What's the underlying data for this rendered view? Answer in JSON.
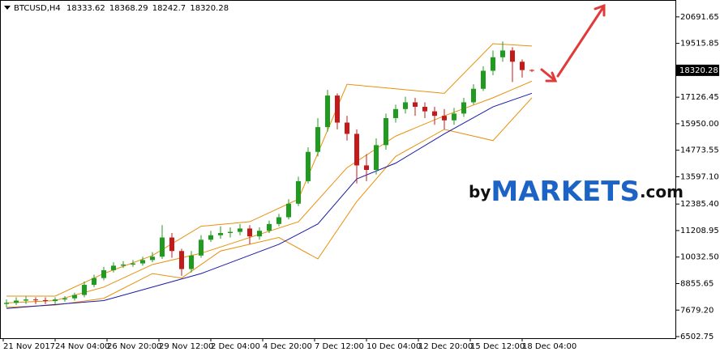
{
  "chart_data": {
    "type": "candlestick",
    "symbol": "BTCUSD,H4",
    "bull_color": "#1f9c1f",
    "bear_color": "#c41a1a",
    "open": [
      7950,
      8000,
      8100,
      8150,
      8120,
      8080,
      8150,
      8200,
      8350,
      8800,
      9100,
      9450,
      9650,
      9700,
      9750,
      9900,
      10050,
      10900,
      10300,
      9500,
      10100,
      10800,
      11000,
      11100,
      11150,
      11300,
      10950,
      11200,
      11500,
      11800,
      12400,
      13400,
      14700,
      15800,
      17200,
      16000,
      15500,
      14100,
      13900,
      15000,
      16200,
      16600,
      16900,
      16700,
      16500,
      16300,
      16100,
      16400,
      16900,
      17500,
      18300,
      18900,
      19200,
      18700,
      18333.62
    ],
    "high": [
      8150,
      8250,
      8300,
      8250,
      8250,
      8250,
      8300,
      8450,
      8950,
      9250,
      9600,
      9800,
      9850,
      9900,
      10050,
      10250,
      11450,
      11100,
      10400,
      10300,
      11000,
      11200,
      11400,
      11350,
      11500,
      11450,
      11350,
      11650,
      11950,
      12600,
      13600,
      14900,
      16200,
      17450,
      17300,
      16300,
      15700,
      14600,
      15300,
      16400,
      16800,
      17150,
      17100,
      16900,
      16700,
      16600,
      16650,
      17100,
      17700,
      18500,
      19200,
      19600,
      19350,
      18800,
      18368.29
    ],
    "low": [
      7800,
      7900,
      7950,
      7950,
      7950,
      7950,
      8050,
      8100,
      8250,
      8700,
      9000,
      9350,
      9550,
      9600,
      9650,
      9800,
      9950,
      10000,
      9200,
      9350,
      10000,
      10700,
      10850,
      10900,
      11000,
      10600,
      10800,
      11100,
      11400,
      11700,
      12300,
      13300,
      14500,
      15600,
      15700,
      15200,
      13300,
      13400,
      13700,
      14800,
      16000,
      16400,
      16300,
      16200,
      15900,
      15700,
      15900,
      16250,
      16800,
      17400,
      18100,
      18700,
      17800,
      18000,
      18242.7
    ],
    "close": [
      8000,
      8100,
      8150,
      8120,
      8080,
      8150,
      8200,
      8350,
      8800,
      9100,
      9450,
      9650,
      9700,
      9750,
      9900,
      10050,
      10900,
      10300,
      9500,
      10100,
      10800,
      11000,
      11100,
      11150,
      11300,
      10950,
      11200,
      11500,
      11800,
      12400,
      13400,
      14700,
      15800,
      17200,
      16000,
      15500,
      14100,
      13900,
      15000,
      16200,
      16600,
      16900,
      16700,
      16500,
      16300,
      16100,
      16400,
      16900,
      17500,
      18300,
      18900,
      19200,
      18700,
      18330,
      18320.28
    ],
    "lines": [
      {
        "color": "#e8900a",
        "x": [
          0,
          5,
          10,
          15,
          20,
          25,
          30,
          35,
          40,
          45,
          50,
          54
        ],
        "values": [
          8300,
          8300,
          9300,
          10100,
          11400,
          11600,
          12600,
          17700,
          17500,
          17300,
          19500,
          19400
        ]
      },
      {
        "color": "#e8900a",
        "x": [
          0,
          5,
          10,
          15,
          20,
          25,
          30,
          35,
          40,
          45,
          50,
          54
        ],
        "values": [
          8000,
          8100,
          8700,
          9700,
          10200,
          10900,
          11600,
          14000,
          15400,
          16300,
          17100,
          17840
        ]
      },
      {
        "color": "#e8900a",
        "x": [
          0,
          5,
          10,
          15,
          18,
          22,
          28,
          32,
          36,
          40,
          45,
          50,
          54
        ],
        "values": [
          7800,
          7900,
          8200,
          9300,
          9100,
          10300,
          10900,
          9950,
          12500,
          14500,
          15700,
          15200,
          17100
        ]
      },
      {
        "color": "#1a1aa8",
        "x": [
          0,
          10,
          20,
          28,
          32,
          36,
          40,
          45,
          50,
          54
        ],
        "values": [
          7750,
          8100,
          9300,
          10600,
          11500,
          13500,
          14200,
          15500,
          16700,
          17300
        ]
      }
    ],
    "x_labels": [
      "21 Nov 2017",
      "24 Nov 04:00",
      "26 Nov 20:00",
      "29 Nov 12:00",
      "2 Dec 04:00",
      "4 Dec 20:00",
      "7 Dec 12:00",
      "10 Dec 04:00",
      "12 Dec 20:00",
      "15 Dec 12:00",
      "18 Dec 04:00"
    ],
    "ylim": [
      6431.5,
      21404.6
    ],
    "yticks": [
      {
        "value": 20691.65,
        "label": "20691.65"
      },
      {
        "value": 19515.85,
        "label": "19515.85"
      },
      {
        "value": 17126.45,
        "label": "17126.45"
      },
      {
        "value": 15950.0,
        "label": "15950.00"
      },
      {
        "value": 14773.55,
        "label": "14773.55"
      },
      {
        "value": 13597.1,
        "label": "13597.10"
      },
      {
        "value": 12385.4,
        "label": "12385.40"
      },
      {
        "value": 11208.95,
        "label": "11208.95"
      },
      {
        "value": 10032.5,
        "label": "10032.50"
      },
      {
        "value": 8855.65,
        "label": "8855.65"
      },
      {
        "value": 7679.2,
        "label": "7679.20"
      },
      {
        "value": 6502.75,
        "label": "6502.75"
      }
    ],
    "watermark": {
      "prefix": "by",
      "brand": "MARKETS",
      "suffix": ".com"
    }
  }
}
